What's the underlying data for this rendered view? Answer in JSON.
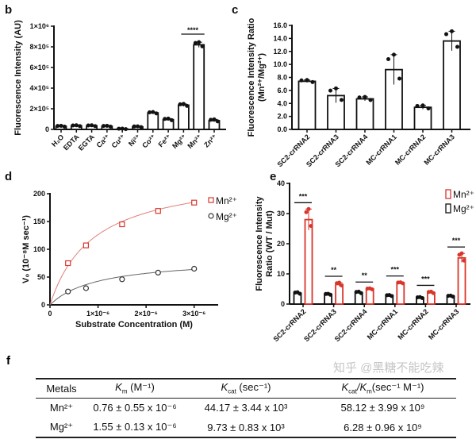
{
  "panel_labels": {
    "b": "b",
    "c": "c",
    "d": "d",
    "e": "e",
    "f": "f"
  },
  "colors": {
    "mn": "#d9362b",
    "mg": "#111111",
    "bar_fill": "#ffffff"
  },
  "chart_data": [
    {
      "id": "b",
      "type": "bar",
      "ylabel": "Fluorescence Intensity (AU)",
      "ylim": [
        0,
        1000000
      ],
      "yticks": [
        0,
        200000,
        400000,
        600000,
        800000,
        1000000
      ],
      "ytick_labels": [
        "0",
        "2×10⁵",
        "4×10⁵",
        "6×10⁵",
        "8×10⁵",
        "1×10⁶"
      ],
      "categories": [
        "H₂O",
        "EDTA",
        "EGTA",
        "Ca²⁺",
        "Cu²⁺",
        "Ni²⁺",
        "Co²⁺",
        "Fe²⁺",
        "Mg²⁺",
        "Mn²⁺",
        "Zn²⁺"
      ],
      "values": [
        30000,
        35000,
        35000,
        30000,
        5000,
        25000,
        160000,
        95000,
        235000,
        820000,
        85000
      ],
      "errors": [
        5000,
        5000,
        5000,
        5000,
        3000,
        5000,
        8000,
        10000,
        12000,
        25000,
        12000
      ],
      "annotations": [
        {
          "text": "****",
          "between": [
            "Mg²⁺",
            "Mn²⁺"
          ]
        }
      ]
    },
    {
      "id": "c",
      "type": "bar",
      "ylabel": [
        "Fluorescence Intensity Ratio",
        "(Mn²⁺/Mg²⁺)"
      ],
      "ylim": [
        0,
        16
      ],
      "yticks": [
        0,
        2,
        4,
        6,
        8,
        10,
        12,
        14,
        16
      ],
      "ytick_labels": [
        "0.0",
        "2.0",
        "4.0",
        "6.0",
        "8.0",
        "10.0",
        "12.0",
        "14.0",
        "16.0"
      ],
      "categories": [
        "SC2-crRNA2",
        "SC2-crRNA3",
        "SC2-crRNA4",
        "MC-crRNA1",
        "MC-crRNA2",
        "MC-crRNA3"
      ],
      "values": [
        7.4,
        5.2,
        4.7,
        9.2,
        3.4,
        13.6
      ],
      "errors": [
        0.2,
        1.1,
        0.3,
        2.3,
        0.3,
        1.5
      ]
    },
    {
      "id": "d",
      "type": "scatter",
      "xlabel": "Substrate Concentration (M)",
      "ylabel": "V₀ (10⁻⁸M sec⁻¹)",
      "xlim": [
        0,
        3.5e-06
      ],
      "ylim": [
        0,
        200
      ],
      "xticks": [
        0,
        1e-06,
        2e-06,
        3e-06
      ],
      "xtick_labels": [
        "0",
        "1×10⁻⁶",
        "2×10⁻⁶",
        "3×10⁻⁶"
      ],
      "yticks": [
        0,
        50,
        100,
        150,
        200
      ],
      "ytick_labels": [
        "0",
        "50",
        "100",
        "150",
        "200"
      ],
      "legend": "top-right",
      "series": [
        {
          "name": "Mn²⁺",
          "marker": "square",
          "color": "#d9362b",
          "x": [
            3.75e-07,
            7.5e-07,
            1.5e-06,
            2.25e-06,
            3e-06
          ],
          "y": [
            75,
            107,
            145,
            169,
            184
          ]
        },
        {
          "name": "Mg²⁺",
          "marker": "circle",
          "color": "#333333",
          "x": [
            3.75e-07,
            7.5e-07,
            1.5e-06,
            2.25e-06,
            3e-06
          ],
          "y": [
            24,
            30,
            46,
            58,
            65
          ]
        }
      ]
    },
    {
      "id": "e",
      "type": "bar",
      "ylabel": [
        "Fluorescence Intensity",
        "Ratio (WT / Mut)"
      ],
      "ylim": [
        0,
        40
      ],
      "yticks": [
        0,
        10,
        20,
        30,
        40
      ],
      "ytick_labels": [
        "0",
        "10",
        "20",
        "30",
        "40"
      ],
      "categories": [
        "SC2-crRNA2",
        "SC2-crRNA3",
        "SC2-crRNA4",
        "MC-crRNA1",
        "MC-crRNA2",
        "MC-crRNA3"
      ],
      "legend": "top-right",
      "series": [
        {
          "name": "Mg²⁺",
          "color": "#111111",
          "values": [
            3.6,
            3.2,
            3.8,
            2.8,
            2.1,
            2.6
          ],
          "errors": [
            0.3,
            0.2,
            0.3,
            0.2,
            0.2,
            0.2
          ]
        },
        {
          "name": "Mn²⁺",
          "color": "#d9362b",
          "values": [
            28,
            6.5,
            5.0,
            7.0,
            3.8,
            15.3
          ],
          "errors": [
            3.5,
            0.6,
            0.2,
            0.2,
            0.3,
            1.5
          ]
        }
      ],
      "significance": [
        "***",
        "**",
        "**",
        "***",
        "***",
        "***"
      ]
    }
  ],
  "table": {
    "headers": [
      {
        "text": "Metals"
      },
      {
        "sym": "K",
        "sub": "m",
        "unit": " (M⁻¹)"
      },
      {
        "sym": "K",
        "sub": "cat",
        "unit": " (sec⁻¹)"
      },
      {
        "sym": "K",
        "sub": "cat",
        "sym2": "/K",
        "sub2": "m",
        "unit": "(sec⁻¹ M⁻¹)"
      }
    ],
    "rows": [
      [
        "Mn²⁺",
        "0.76 ± 0.55 x 10⁻⁶",
        "44.17 ± 3.44 x 10³",
        "58.12 ± 3.99 x 10⁹"
      ],
      [
        "Mg²⁺",
        "1.55 ± 0.13 x 10⁻⁶",
        "9.73 ± 0.83 x 10³",
        "6.28 ± 0.96 x 10⁹"
      ]
    ]
  },
  "watermark": "知乎 @黑糖不能吃辣"
}
